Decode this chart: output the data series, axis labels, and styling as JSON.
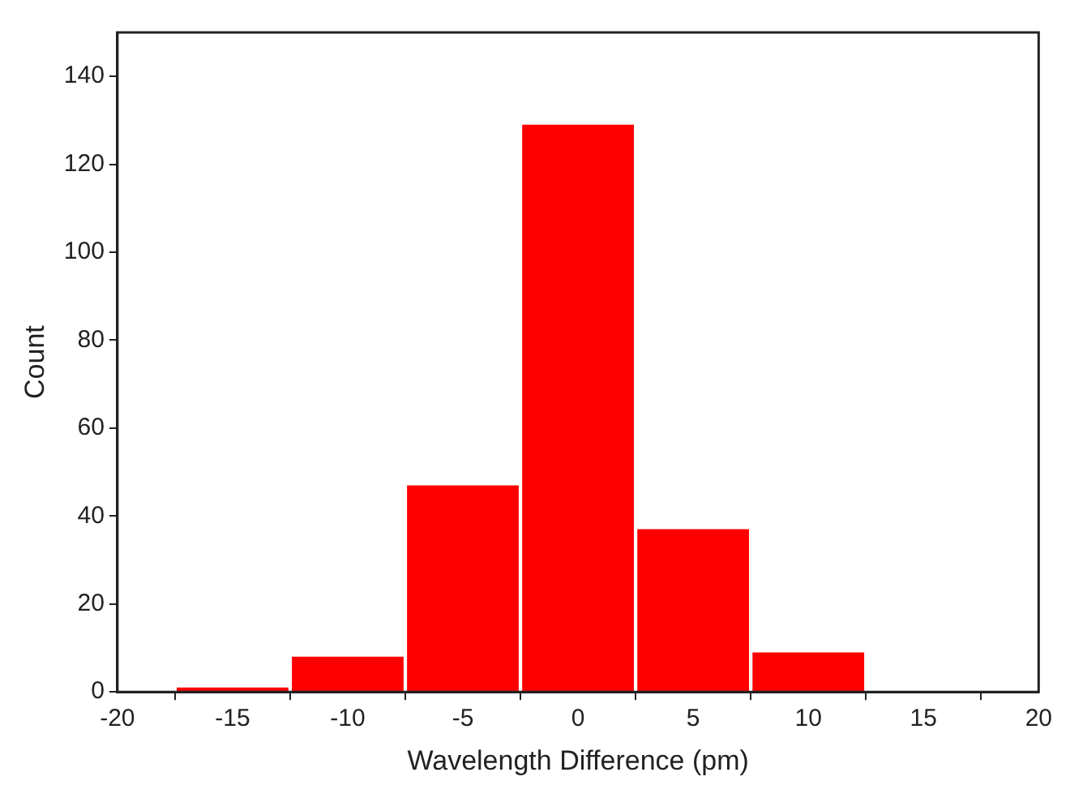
{
  "chart_data": {
    "type": "histogram",
    "xlabel": "Wavelength Difference (pm)",
    "ylabel": "Count",
    "bins": [
      -17.5,
      -12.5,
      -7.5,
      -2.5,
      2.5,
      7.5,
      12.5
    ],
    "values": [
      1,
      8,
      47,
      129,
      37,
      9
    ],
    "color": "#ff0000",
    "xlim": [
      -20,
      20
    ],
    "xticks": [
      -20,
      -15,
      -10,
      -5,
      0,
      5,
      10,
      15,
      20
    ],
    "ylim": [
      0,
      150
    ],
    "yticks": [
      0,
      20,
      40,
      60,
      80,
      100,
      120,
      140
    ],
    "grid": false,
    "legend": false
  }
}
